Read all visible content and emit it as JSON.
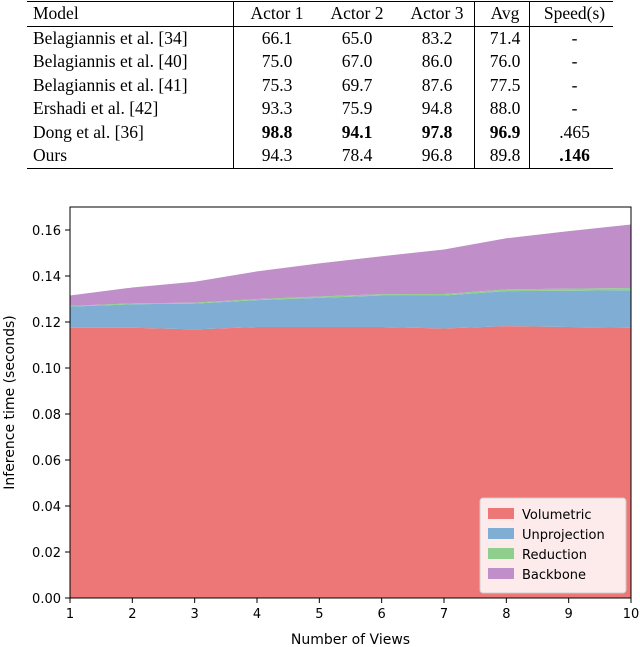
{
  "table": {
    "headers": [
      "Model",
      "Actor 1",
      "Actor 2",
      "Actor 3",
      "Avg",
      "Speed(s)"
    ],
    "rows": [
      {
        "model": "Belagiannis et al. [34]",
        "a1": "66.1",
        "a2": "65.0",
        "a3": "83.2",
        "avg": "71.4",
        "speed": "-"
      },
      {
        "model": "Belagiannis et al. [40]",
        "a1": "75.0",
        "a2": "67.0",
        "a3": "86.0",
        "avg": "76.0",
        "speed": "-"
      },
      {
        "model": "Belagiannis et al. [41]",
        "a1": "75.3",
        "a2": "69.7",
        "a3": "87.6",
        "avg": "77.5",
        "speed": "-"
      },
      {
        "model": "Ershadi et al. [42]",
        "a1": "93.3",
        "a2": "75.9",
        "a3": "94.8",
        "avg": "88.0",
        "speed": "-"
      },
      {
        "model": "Dong et al. [36]",
        "a1": "98.8",
        "a2": "94.1",
        "a3": "97.8",
        "avg": "96.9",
        "speed": ".465"
      },
      {
        "model": "Ours",
        "a1": "94.3",
        "a2": "78.4",
        "a3": "96.8",
        "avg": "89.8",
        "speed": ".146"
      }
    ]
  },
  "chart_data": {
    "type": "area",
    "stacked": true,
    "xlabel": "Number of Views",
    "ylabel": "Inference time (seconds)",
    "x": [
      1,
      2,
      3,
      4,
      5,
      6,
      7,
      8,
      9,
      10
    ],
    "xlim": [
      1,
      10
    ],
    "ylim": [
      0,
      0.17
    ],
    "xticks": [
      "1",
      "2",
      "3",
      "4",
      "5",
      "6",
      "7",
      "8",
      "9",
      "10"
    ],
    "yticks": [
      {
        "value": 0,
        "label": "0.00"
      },
      {
        "value": 0.02,
        "label": "0.02"
      },
      {
        "value": 0.04,
        "label": "0.04"
      },
      {
        "value": 0.06,
        "label": "0.06"
      },
      {
        "value": 0.08,
        "label": "0.08"
      },
      {
        "value": 0.1,
        "label": "0.10"
      },
      {
        "value": 0.12,
        "label": "0.12"
      },
      {
        "value": 0.14,
        "label": "0.14"
      },
      {
        "value": 0.16,
        "label": "0.16"
      }
    ],
    "legend_position": "bottom-right",
    "series": [
      {
        "name": "Volumetric",
        "color": "#ed7777",
        "values": [
          0.1175,
          0.1175,
          0.1168,
          0.1178,
          0.1178,
          0.1178,
          0.1172,
          0.1182,
          0.1178,
          0.1175
        ]
      },
      {
        "name": "Unprojection",
        "color": "#7fadd3",
        "values": [
          0.0092,
          0.0102,
          0.0112,
          0.0117,
          0.0127,
          0.0137,
          0.0143,
          0.0152,
          0.0158,
          0.0163
        ]
      },
      {
        "name": "Reduction",
        "color": "#8ecf8e",
        "values": [
          0.0003,
          0.0004,
          0.0004,
          0.0005,
          0.0006,
          0.0006,
          0.0007,
          0.0008,
          0.0009,
          0.001
        ]
      },
      {
        "name": "Backbone",
        "color": "#c08ec8",
        "values": [
          0.0045,
          0.0069,
          0.0091,
          0.012,
          0.0144,
          0.0165,
          0.0193,
          0.0222,
          0.025,
          0.0276
        ]
      }
    ]
  }
}
